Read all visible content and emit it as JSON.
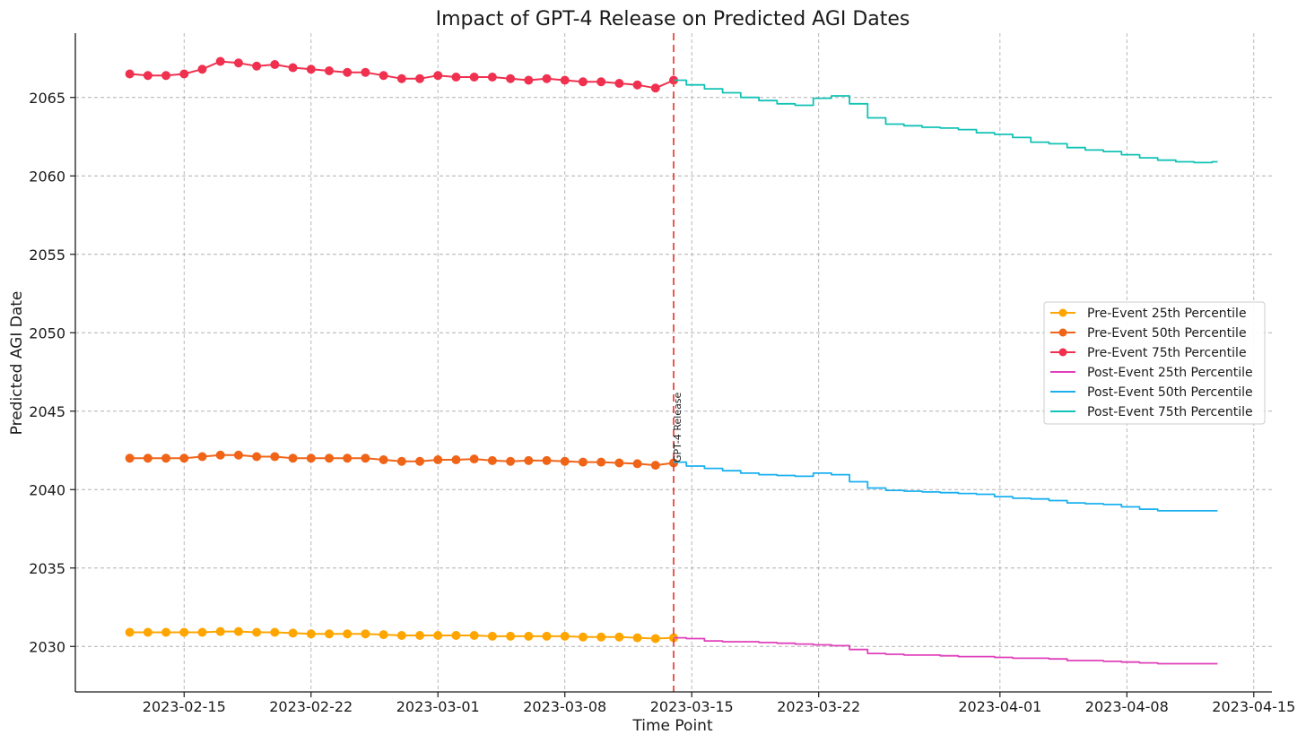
{
  "chart_data": {
    "type": "line",
    "title": "Impact of GPT-4 Release on Predicted AGI Dates",
    "xlabel": "Time Point",
    "ylabel": "Predicted AGI Date",
    "xlim": [
      "2023-02-09",
      "2023-04-16"
    ],
    "ylim": [
      2027.1,
      2069.1
    ],
    "grid": true,
    "legend_position": "center-right",
    "x_ticks": [
      "2023-02-15",
      "2023-02-22",
      "2023-03-01",
      "2023-03-08",
      "2023-03-15",
      "2023-03-22",
      "2023-04-01",
      "2023-04-08",
      "2023-04-15"
    ],
    "y_ticks": [
      2030,
      2035,
      2040,
      2045,
      2050,
      2055,
      2060,
      2065
    ],
    "event": {
      "date": "2023-03-14",
      "label": "GPT-4 Release",
      "color": "#e8473f"
    },
    "series": [
      {
        "name": "Pre-Event 25th Percentile",
        "color": "#ffa500",
        "marker": true,
        "points": [
          [
            "2023-02-12",
            2030.9
          ],
          [
            "2023-02-13",
            2030.9
          ],
          [
            "2023-02-14",
            2030.9
          ],
          [
            "2023-02-15",
            2030.9
          ],
          [
            "2023-02-16",
            2030.9
          ],
          [
            "2023-02-17",
            2030.95
          ],
          [
            "2023-02-18",
            2030.95
          ],
          [
            "2023-02-19",
            2030.9
          ],
          [
            "2023-02-20",
            2030.9
          ],
          [
            "2023-02-21",
            2030.85
          ],
          [
            "2023-02-22",
            2030.8
          ],
          [
            "2023-02-23",
            2030.8
          ],
          [
            "2023-02-24",
            2030.8
          ],
          [
            "2023-02-25",
            2030.8
          ],
          [
            "2023-02-26",
            2030.75
          ],
          [
            "2023-02-27",
            2030.7
          ],
          [
            "2023-02-28",
            2030.7
          ],
          [
            "2023-03-01",
            2030.7
          ],
          [
            "2023-03-02",
            2030.7
          ],
          [
            "2023-03-03",
            2030.7
          ],
          [
            "2023-03-04",
            2030.65
          ],
          [
            "2023-03-05",
            2030.65
          ],
          [
            "2023-03-06",
            2030.65
          ],
          [
            "2023-03-07",
            2030.65
          ],
          [
            "2023-03-08",
            2030.65
          ],
          [
            "2023-03-09",
            2030.6
          ],
          [
            "2023-03-10",
            2030.6
          ],
          [
            "2023-03-11",
            2030.6
          ],
          [
            "2023-03-12",
            2030.55
          ],
          [
            "2023-03-13",
            2030.5
          ],
          [
            "2023-03-14",
            2030.55
          ]
        ]
      },
      {
        "name": "Pre-Event 50th Percentile",
        "color": "#f06418",
        "marker": true,
        "points": [
          [
            "2023-02-12",
            2042.0
          ],
          [
            "2023-02-13",
            2042.0
          ],
          [
            "2023-02-14",
            2042.0
          ],
          [
            "2023-02-15",
            2042.0
          ],
          [
            "2023-02-16",
            2042.1
          ],
          [
            "2023-02-17",
            2042.2
          ],
          [
            "2023-02-18",
            2042.2
          ],
          [
            "2023-02-19",
            2042.1
          ],
          [
            "2023-02-20",
            2042.1
          ],
          [
            "2023-02-21",
            2042.0
          ],
          [
            "2023-02-22",
            2042.0
          ],
          [
            "2023-02-23",
            2042.0
          ],
          [
            "2023-02-24",
            2042.0
          ],
          [
            "2023-02-25",
            2042.0
          ],
          [
            "2023-02-26",
            2041.9
          ],
          [
            "2023-02-27",
            2041.8
          ],
          [
            "2023-02-28",
            2041.8
          ],
          [
            "2023-03-01",
            2041.9
          ],
          [
            "2023-03-02",
            2041.9
          ],
          [
            "2023-03-03",
            2041.95
          ],
          [
            "2023-03-04",
            2041.85
          ],
          [
            "2023-03-05",
            2041.8
          ],
          [
            "2023-03-06",
            2041.85
          ],
          [
            "2023-03-07",
            2041.85
          ],
          [
            "2023-03-08",
            2041.8
          ],
          [
            "2023-03-09",
            2041.75
          ],
          [
            "2023-03-10",
            2041.75
          ],
          [
            "2023-03-11",
            2041.7
          ],
          [
            "2023-03-12",
            2041.65
          ],
          [
            "2023-03-13",
            2041.55
          ],
          [
            "2023-03-14",
            2041.7
          ]
        ]
      },
      {
        "name": "Pre-Event 75th Percentile",
        "color": "#f0304f",
        "marker": true,
        "points": [
          [
            "2023-02-12",
            2066.5
          ],
          [
            "2023-02-13",
            2066.4
          ],
          [
            "2023-02-14",
            2066.4
          ],
          [
            "2023-02-15",
            2066.5
          ],
          [
            "2023-02-16",
            2066.8
          ],
          [
            "2023-02-17",
            2067.3
          ],
          [
            "2023-02-18",
            2067.2
          ],
          [
            "2023-02-19",
            2067.0
          ],
          [
            "2023-02-20",
            2067.1
          ],
          [
            "2023-02-21",
            2066.9
          ],
          [
            "2023-02-22",
            2066.8
          ],
          [
            "2023-02-23",
            2066.7
          ],
          [
            "2023-02-24",
            2066.6
          ],
          [
            "2023-02-25",
            2066.6
          ],
          [
            "2023-02-26",
            2066.4
          ],
          [
            "2023-02-27",
            2066.2
          ],
          [
            "2023-02-28",
            2066.2
          ],
          [
            "2023-03-01",
            2066.4
          ],
          [
            "2023-03-02",
            2066.3
          ],
          [
            "2023-03-03",
            2066.3
          ],
          [
            "2023-03-04",
            2066.3
          ],
          [
            "2023-03-05",
            2066.2
          ],
          [
            "2023-03-06",
            2066.1
          ],
          [
            "2023-03-07",
            2066.2
          ],
          [
            "2023-03-08",
            2066.1
          ],
          [
            "2023-03-09",
            2066.0
          ],
          [
            "2023-03-10",
            2066.0
          ],
          [
            "2023-03-11",
            2065.9
          ],
          [
            "2023-03-12",
            2065.8
          ],
          [
            "2023-03-13",
            2065.6
          ],
          [
            "2023-03-14",
            2066.1
          ]
        ]
      },
      {
        "name": "Post-Event 25th Percentile",
        "color": "#e040bb",
        "marker": false,
        "points": [
          [
            "2023-03-14",
            2030.55
          ],
          [
            "2023-03-15",
            2030.5
          ],
          [
            "2023-03-16",
            2030.35
          ],
          [
            "2023-03-17",
            2030.3
          ],
          [
            "2023-03-18",
            2030.3
          ],
          [
            "2023-03-19",
            2030.25
          ],
          [
            "2023-03-20",
            2030.2
          ],
          [
            "2023-03-21",
            2030.15
          ],
          [
            "2023-03-22",
            2030.1
          ],
          [
            "2023-03-23",
            2030.05
          ],
          [
            "2023-03-24",
            2029.8
          ],
          [
            "2023-03-25",
            2029.55
          ],
          [
            "2023-03-26",
            2029.5
          ],
          [
            "2023-03-27",
            2029.45
          ],
          [
            "2023-03-28",
            2029.45
          ],
          [
            "2023-03-29",
            2029.4
          ],
          [
            "2023-03-30",
            2029.35
          ],
          [
            "2023-03-31",
            2029.35
          ],
          [
            "2023-04-01",
            2029.3
          ],
          [
            "2023-04-02",
            2029.25
          ],
          [
            "2023-04-03",
            2029.25
          ],
          [
            "2023-04-04",
            2029.2
          ],
          [
            "2023-04-05",
            2029.1
          ],
          [
            "2023-04-06",
            2029.1
          ],
          [
            "2023-04-07",
            2029.05
          ],
          [
            "2023-04-08",
            2029.0
          ],
          [
            "2023-04-09",
            2028.95
          ],
          [
            "2023-04-10",
            2028.9
          ],
          [
            "2023-04-11",
            2028.9
          ],
          [
            "2023-04-12",
            2028.9
          ],
          [
            "2023-04-13",
            2028.9
          ]
        ]
      },
      {
        "name": "Post-Event 50th Percentile",
        "color": "#1ab0f0",
        "marker": false,
        "points": [
          [
            "2023-03-14",
            2041.75
          ],
          [
            "2023-03-15",
            2041.5
          ],
          [
            "2023-03-16",
            2041.35
          ],
          [
            "2023-03-17",
            2041.2
          ],
          [
            "2023-03-18",
            2041.05
          ],
          [
            "2023-03-19",
            2040.95
          ],
          [
            "2023-03-20",
            2040.9
          ],
          [
            "2023-03-21",
            2040.85
          ],
          [
            "2023-03-22",
            2041.05
          ],
          [
            "2023-03-23",
            2040.95
          ],
          [
            "2023-03-24",
            2040.5
          ],
          [
            "2023-03-25",
            2040.1
          ],
          [
            "2023-03-26",
            2039.95
          ],
          [
            "2023-03-27",
            2039.9
          ],
          [
            "2023-03-28",
            2039.85
          ],
          [
            "2023-03-29",
            2039.8
          ],
          [
            "2023-03-30",
            2039.75
          ],
          [
            "2023-03-31",
            2039.7
          ],
          [
            "2023-04-01",
            2039.55
          ],
          [
            "2023-04-02",
            2039.45
          ],
          [
            "2023-04-03",
            2039.4
          ],
          [
            "2023-04-04",
            2039.3
          ],
          [
            "2023-04-05",
            2039.15
          ],
          [
            "2023-04-06",
            2039.1
          ],
          [
            "2023-04-07",
            2039.05
          ],
          [
            "2023-04-08",
            2038.9
          ],
          [
            "2023-04-09",
            2038.75
          ],
          [
            "2023-04-10",
            2038.65
          ],
          [
            "2023-04-11",
            2038.65
          ],
          [
            "2023-04-12",
            2038.65
          ],
          [
            "2023-04-13",
            2038.65
          ]
        ]
      },
      {
        "name": "Post-Event 75th Percentile",
        "color": "#12c2b5",
        "marker": false,
        "points": [
          [
            "2023-03-14",
            2066.1
          ],
          [
            "2023-03-15",
            2065.8
          ],
          [
            "2023-03-16",
            2065.55
          ],
          [
            "2023-03-17",
            2065.3
          ],
          [
            "2023-03-18",
            2065.0
          ],
          [
            "2023-03-19",
            2064.8
          ],
          [
            "2023-03-20",
            2064.6
          ],
          [
            "2023-03-21",
            2064.5
          ],
          [
            "2023-03-22",
            2064.95
          ],
          [
            "2023-03-23",
            2065.1
          ],
          [
            "2023-03-24",
            2064.6
          ],
          [
            "2023-03-25",
            2063.7
          ],
          [
            "2023-03-26",
            2063.3
          ],
          [
            "2023-03-27",
            2063.2
          ],
          [
            "2023-03-28",
            2063.1
          ],
          [
            "2023-03-29",
            2063.05
          ],
          [
            "2023-03-30",
            2062.95
          ],
          [
            "2023-03-31",
            2062.75
          ],
          [
            "2023-04-01",
            2062.65
          ],
          [
            "2023-04-02",
            2062.45
          ],
          [
            "2023-04-03",
            2062.15
          ],
          [
            "2023-04-04",
            2062.05
          ],
          [
            "2023-04-05",
            2061.8
          ],
          [
            "2023-04-06",
            2061.65
          ],
          [
            "2023-04-07",
            2061.55
          ],
          [
            "2023-04-08",
            2061.35
          ],
          [
            "2023-04-09",
            2061.15
          ],
          [
            "2023-04-10",
            2061.0
          ],
          [
            "2023-04-11",
            2060.9
          ],
          [
            "2023-04-12",
            2060.85
          ],
          [
            "2023-04-13",
            2060.9
          ]
        ]
      }
    ]
  }
}
